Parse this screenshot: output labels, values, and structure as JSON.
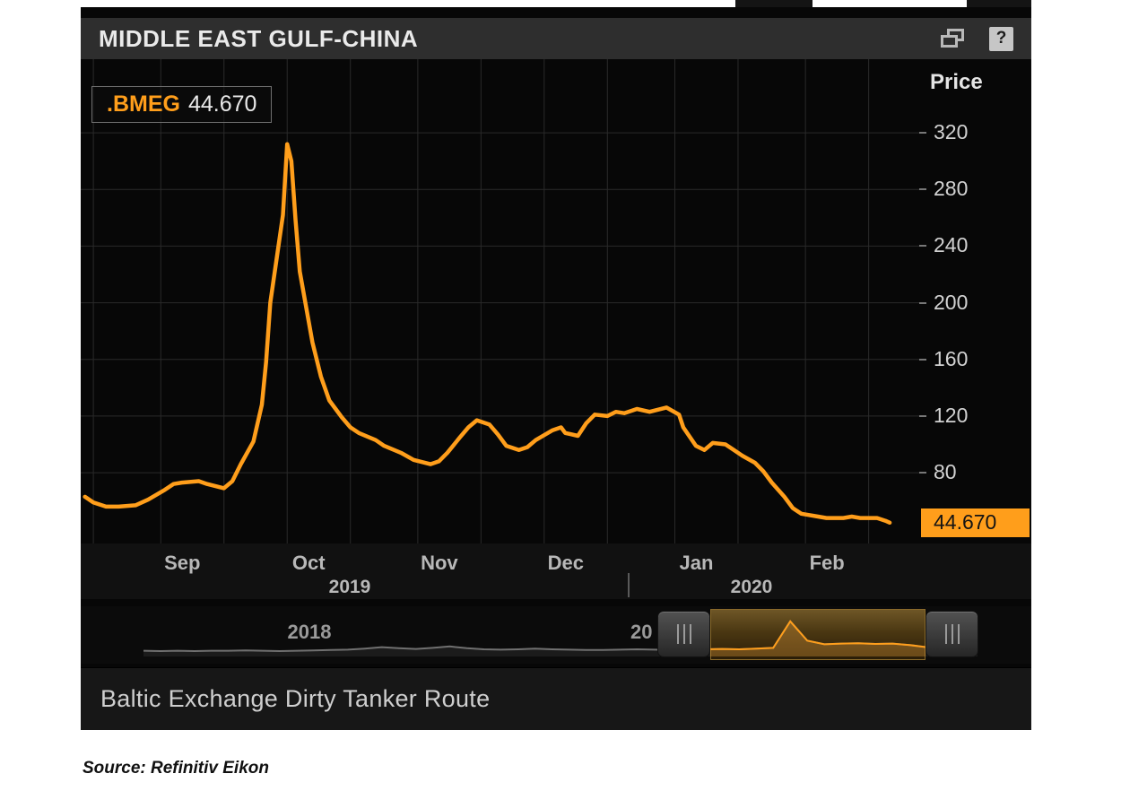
{
  "page": {
    "source_note": "Source: Refinitiv Eikon"
  },
  "titlebar": {
    "title": "MIDDLE EAST GULF-CHINA",
    "popout_icon": "overlapping-windows-icon",
    "help_label": "?"
  },
  "legend": {
    "symbol": ".BMEG",
    "value": "44.670"
  },
  "y_axis": {
    "label": "Price",
    "last_price_badge": "44.670"
  },
  "x_axis": {
    "year_left": "2019",
    "year_right": "2020"
  },
  "range_selector": {
    "year_label_left": "2018",
    "year_label_partial": "20"
  },
  "caption": {
    "text": "Baltic Exchange Dirty Tanker Route"
  },
  "colors": {
    "accent_orange": "#FF9E1B",
    "panel_bg": "#070707",
    "titlebar_bg": "#2e2e2e",
    "grid": "#2a2a2a",
    "tick_text": "#d2d2d2",
    "mini_gray": "#707070"
  },
  "chart_data": {
    "type": "line",
    "title": "MIDDLE EAST GULF-CHINA",
    "ylabel": "Price",
    "ylim": [
      30,
      372
    ],
    "yticks": [
      80,
      120,
      160,
      200,
      240,
      280,
      320
    ],
    "x_domain": [
      "2019-08-13",
      "2020-02-28"
    ],
    "x_tick_months": [
      "Sep",
      "Oct",
      "Nov",
      "Dec",
      "Jan",
      "Feb"
    ],
    "month_starts": [
      "2019-09-01",
      "2019-10-01",
      "2019-11-01",
      "2019-12-01",
      "2020-01-01",
      "2020-02-01"
    ],
    "grid": true,
    "legend_position": "top-left",
    "last_price": 44.67,
    "series": [
      {
        "name": ".BMEG",
        "color": "#FF9E1B",
        "points": [
          [
            "2019-08-14",
            63
          ],
          [
            "2019-08-16",
            59
          ],
          [
            "2019-08-19",
            56
          ],
          [
            "2019-08-22",
            56
          ],
          [
            "2019-08-26",
            57
          ],
          [
            "2019-08-29",
            61
          ],
          [
            "2019-09-02",
            68
          ],
          [
            "2019-09-04",
            72
          ],
          [
            "2019-09-06",
            73
          ],
          [
            "2019-09-10",
            74
          ],
          [
            "2019-09-12",
            72
          ],
          [
            "2019-09-16",
            69
          ],
          [
            "2019-09-18",
            74
          ],
          [
            "2019-09-20",
            86
          ],
          [
            "2019-09-23",
            102
          ],
          [
            "2019-09-25",
            128
          ],
          [
            "2019-09-26",
            158
          ],
          [
            "2019-09-27",
            200
          ],
          [
            "2019-09-30",
            262
          ],
          [
            "2019-10-01",
            312
          ],
          [
            "2019-10-02",
            300
          ],
          [
            "2019-10-03",
            258
          ],
          [
            "2019-10-04",
            222
          ],
          [
            "2019-10-07",
            172
          ],
          [
            "2019-10-09",
            148
          ],
          [
            "2019-10-11",
            131
          ],
          [
            "2019-10-14",
            119
          ],
          [
            "2019-10-16",
            112
          ],
          [
            "2019-10-18",
            108
          ],
          [
            "2019-10-22",
            103
          ],
          [
            "2019-10-24",
            99
          ],
          [
            "2019-10-28",
            94
          ],
          [
            "2019-10-31",
            89
          ],
          [
            "2019-11-04",
            86
          ],
          [
            "2019-11-06",
            88
          ],
          [
            "2019-11-08",
            94
          ],
          [
            "2019-11-11",
            105
          ],
          [
            "2019-11-13",
            112
          ],
          [
            "2019-11-15",
            117
          ],
          [
            "2019-11-18",
            114
          ],
          [
            "2019-11-20",
            107
          ],
          [
            "2019-11-22",
            99
          ],
          [
            "2019-11-25",
            96
          ],
          [
            "2019-11-27",
            98
          ],
          [
            "2019-11-29",
            103
          ],
          [
            "2019-12-03",
            110
          ],
          [
            "2019-12-05",
            112
          ],
          [
            "2019-12-06",
            108
          ],
          [
            "2019-12-09",
            106
          ],
          [
            "2019-12-11",
            115
          ],
          [
            "2019-12-13",
            121
          ],
          [
            "2019-12-16",
            120
          ],
          [
            "2019-12-18",
            123
          ],
          [
            "2019-12-20",
            122
          ],
          [
            "2019-12-23",
            125
          ],
          [
            "2019-12-26",
            123
          ],
          [
            "2019-12-30",
            126
          ],
          [
            "2020-01-02",
            121
          ],
          [
            "2020-01-03",
            112
          ],
          [
            "2020-01-06",
            99
          ],
          [
            "2020-01-08",
            96
          ],
          [
            "2020-01-10",
            101
          ],
          [
            "2020-01-13",
            100
          ],
          [
            "2020-01-15",
            96
          ],
          [
            "2020-01-17",
            92
          ],
          [
            "2020-01-20",
            87
          ],
          [
            "2020-01-22",
            81
          ],
          [
            "2020-01-24",
            73
          ],
          [
            "2020-01-27",
            63
          ],
          [
            "2020-01-29",
            55
          ],
          [
            "2020-01-31",
            51
          ],
          [
            "2020-02-04",
            49
          ],
          [
            "2020-02-06",
            48
          ],
          [
            "2020-02-10",
            48
          ],
          [
            "2020-02-12",
            49
          ],
          [
            "2020-02-14",
            48
          ],
          [
            "2020-02-18",
            48
          ],
          [
            "2020-02-20",
            46
          ],
          [
            "2020-02-21",
            44.67
          ]
        ]
      }
    ],
    "mini_series": {
      "color_selected": "#FF9E1B",
      "color_unselected": "#707070",
      "values": [
        6,
        5,
        6,
        5,
        6,
        6,
        7,
        6,
        5,
        6,
        7,
        8,
        9,
        12,
        16,
        13,
        11,
        14,
        18,
        13,
        10,
        9,
        10,
        12,
        10,
        9,
        8,
        8,
        9,
        10,
        9,
        8,
        9,
        10,
        11,
        10,
        12,
        14,
        88,
        34,
        24,
        26,
        27,
        25,
        26,
        22,
        16,
        12,
        11,
        11
      ]
    }
  }
}
